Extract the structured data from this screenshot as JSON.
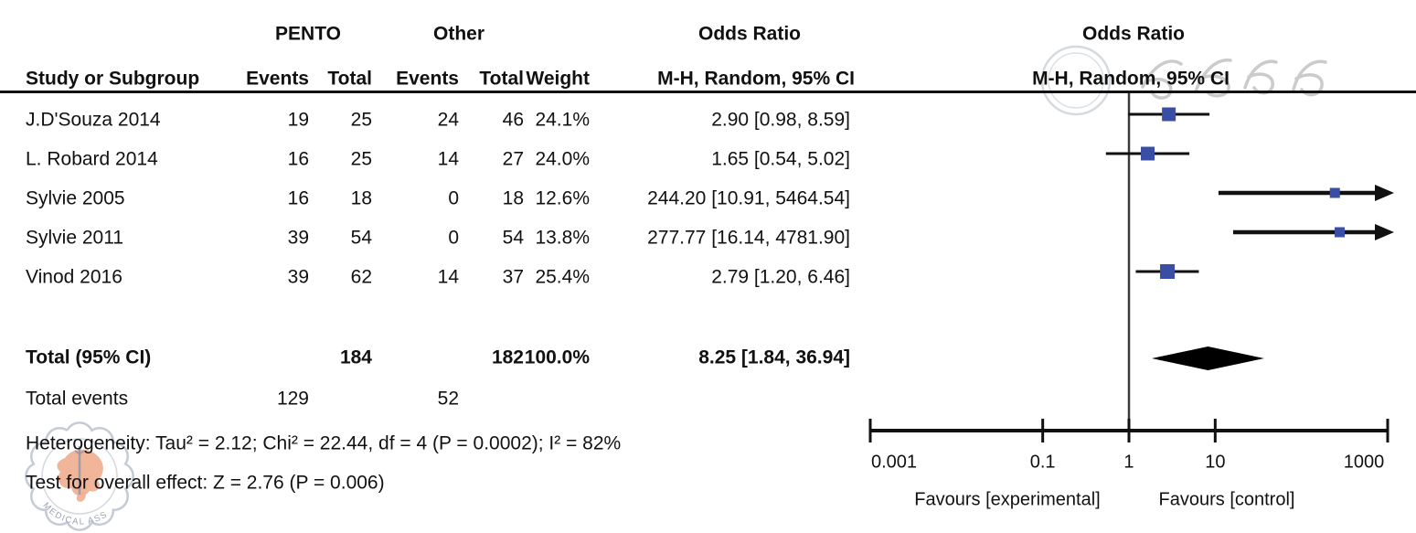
{
  "header": {
    "study_col": "Study or Subgroup",
    "group1": "PENTO",
    "group2": "Other",
    "events": "Events",
    "total": "Total",
    "weight": "Weight",
    "or_title": "Odds Ratio",
    "or_subtitle": "M-H, Random, 95% CI",
    "plot_title": "Odds Ratio",
    "plot_subtitle": "M-H, Random, 95% CI"
  },
  "chart_data": {
    "type": "forest",
    "effect_measure": "Odds Ratio (M-H, Random, 95% CI)",
    "groups": [
      "PENTO",
      "Other"
    ],
    "studies": [
      {
        "name": "J.D'Souza 2014",
        "events1": "19",
        "total1": "25",
        "events2": "24",
        "total2": "46",
        "weight": "24.1%",
        "weight_pct": 24.1,
        "or": 2.9,
        "ci_low": 0.98,
        "ci_high": 8.59,
        "or_label": "2.90 [0.98, 8.59]"
      },
      {
        "name": "L. Robard 2014",
        "events1": "16",
        "total1": "25",
        "events2": "14",
        "total2": "27",
        "weight": "24.0%",
        "weight_pct": 24.0,
        "or": 1.65,
        "ci_low": 0.54,
        "ci_high": 5.02,
        "or_label": "1.65 [0.54, 5.02]"
      },
      {
        "name": "Sylvie 2005",
        "events1": "16",
        "total1": "18",
        "events2": "0",
        "total2": "18",
        "weight": "12.6%",
        "weight_pct": 12.6,
        "or": 244.2,
        "ci_low": 10.91,
        "ci_high": 5464.54,
        "or_label": "244.20 [10.91, 5464.54]"
      },
      {
        "name": "Sylvie 2011",
        "events1": "39",
        "total1": "54",
        "events2": "0",
        "total2": "54",
        "weight": "13.8%",
        "weight_pct": 13.8,
        "or": 277.77,
        "ci_low": 16.14,
        "ci_high": 4781.9,
        "or_label": "277.77 [16.14, 4781.90]"
      },
      {
        "name": "Vinod 2016",
        "events1": "39",
        "total1": "62",
        "events2": "14",
        "total2": "37",
        "weight": "25.4%",
        "weight_pct": 25.4,
        "or": 2.79,
        "ci_low": 1.2,
        "ci_high": 6.46,
        "or_label": "2.79 [1.20, 6.46]"
      }
    ],
    "total": {
      "name": "Total (95% CI)",
      "total1": "184",
      "total2": "182",
      "weight": "100.0%",
      "or": 8.25,
      "ci_low": 1.84,
      "ci_high": 36.94,
      "or_label": "8.25 [1.84, 36.94]"
    },
    "total_events": {
      "label": "Total events",
      "events1": "129",
      "events2": "52"
    },
    "footnotes": {
      "heterogeneity": "Heterogeneity: Tau² = 2.12; Chi² = 22.44, df = 4 (P = 0.0002); I² = 82%",
      "overall_effect": "Test for overall effect: Z = 2.76 (P = 0.006)"
    },
    "axis": {
      "scale": "log",
      "min": 0.001,
      "max": 1000,
      "tick_values": [
        0.001,
        0.1,
        1,
        10,
        1000
      ],
      "tick_labels": [
        "0.001",
        "0.1",
        "1",
        "10",
        "1000"
      ]
    },
    "favours_left": "Favours [experimental]",
    "favours_right": "Favours [control]",
    "colors": {
      "marker": "#3A4EA5",
      "diamond": "#000000",
      "line": "#111111",
      "null_line": "#3a3a3a"
    }
  },
  "watermark": {
    "seal_text": "MEDICAL ASS"
  }
}
